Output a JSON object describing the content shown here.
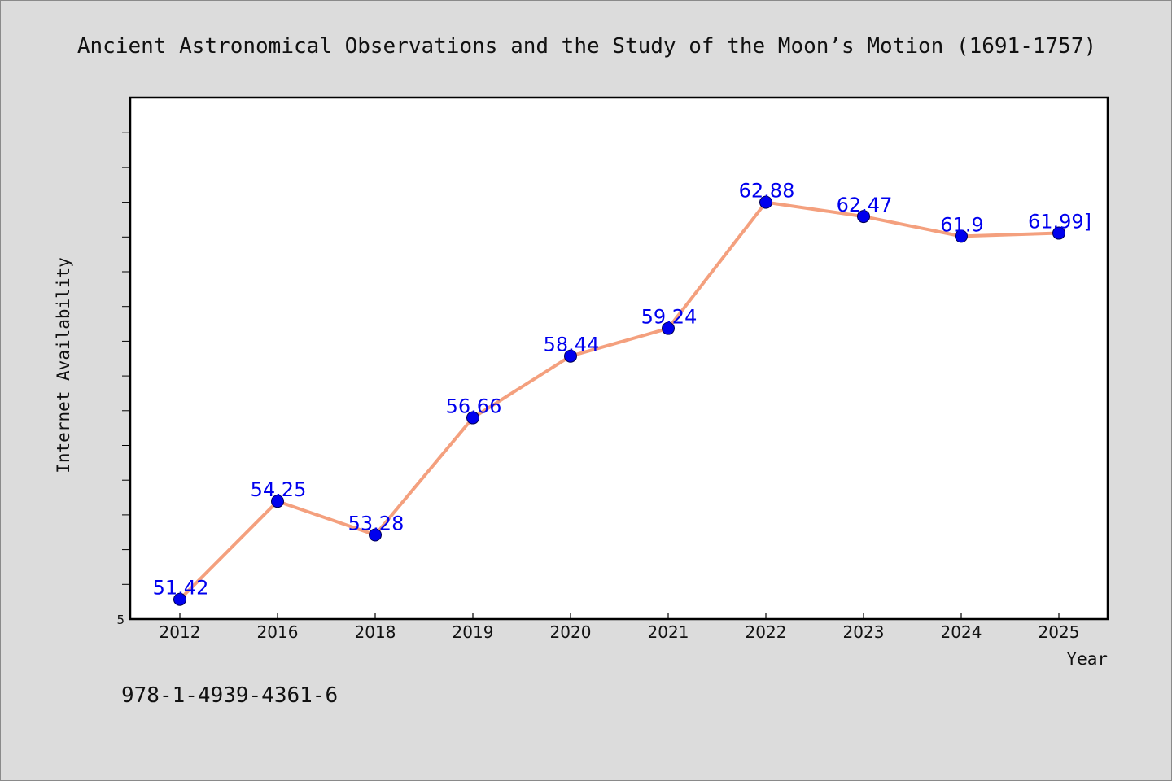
{
  "chart_data": {
    "type": "line",
    "title": "Ancient Astronomical Observations and the Study of the Moon’s Motion (1691-1757)",
    "xlabel": "Year",
    "ylabel": "Internet Availability",
    "categories": [
      "2012",
      "2016",
      "2018",
      "2019",
      "2020",
      "2021",
      "2022",
      "2023",
      "2024",
      "2025"
    ],
    "series": [
      {
        "values": [
          51.42,
          54.25,
          53.28,
          56.66,
          58.44,
          59.24,
          62.88,
          62.47,
          61.9,
          61.99
        ]
      }
    ],
    "data_labels": [
      "51.42",
      "54.25",
      "53.28",
      "56.66",
      "58.44",
      "59.24",
      "62.88",
      "62.47",
      "61.9",
      "61.99]"
    ],
    "ylim": [
      50.85,
      65.9
    ],
    "yticks_labeled": [
      "5"
    ],
    "grid": false,
    "legend": "none",
    "colors": {
      "line": "#f4a07e",
      "marker": "#0000ee",
      "marker_edge": "#000055",
      "data_label": "#0000ee",
      "background": "#dcdcdc",
      "plot_background": "#ffffff",
      "frame": "#000000"
    }
  },
  "footer": {
    "isbn": "978-1-4939-4361-6"
  }
}
